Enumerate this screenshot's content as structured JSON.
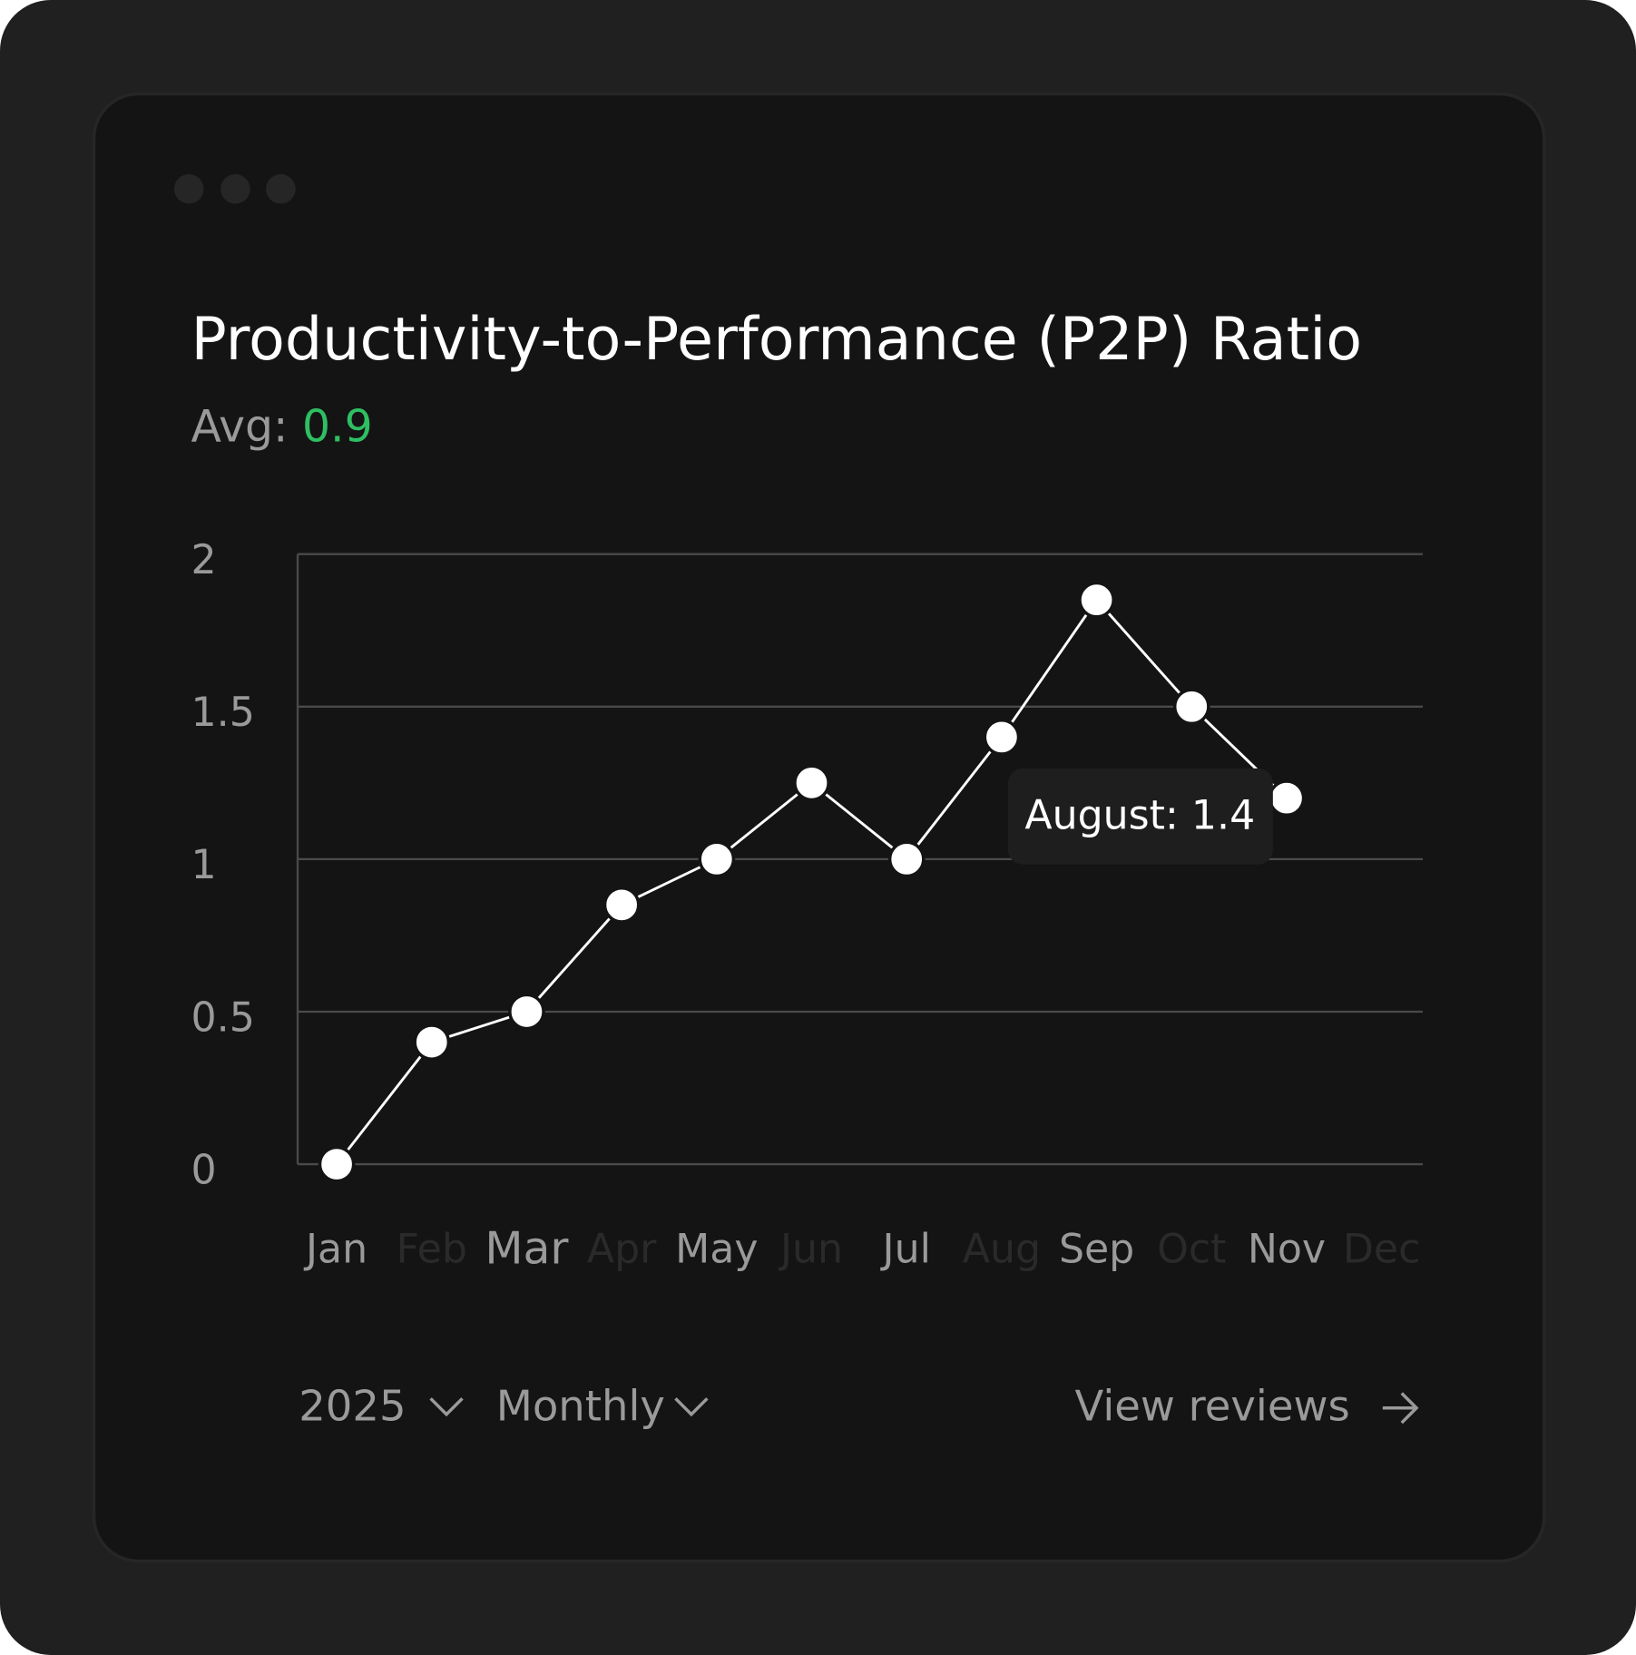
{
  "chart_data": {
    "type": "line",
    "title": "Productivity-to-Performance (P2P) Ratio",
    "average_label": "Avg:",
    "average": 0.9,
    "categories": [
      "Jan",
      "Feb",
      "Mar",
      "Apr",
      "May",
      "Jun",
      "Jul",
      "Aug",
      "Sep",
      "Oct",
      "Nov",
      "Dec"
    ],
    "values": [
      0,
      0.4,
      0.5,
      0.85,
      1,
      1.25,
      1,
      1.4,
      1.85,
      1.5,
      1.2,
      null
    ],
    "color": "#ffffff",
    "ylim": [
      0,
      2
    ],
    "yticks": [
      0,
      0.5,
      1,
      1.5,
      2
    ],
    "grid": true,
    "tooltip": "August: 1.4"
  },
  "footer": {
    "year": "2025",
    "period": "Monthly",
    "link": "View reviews"
  }
}
